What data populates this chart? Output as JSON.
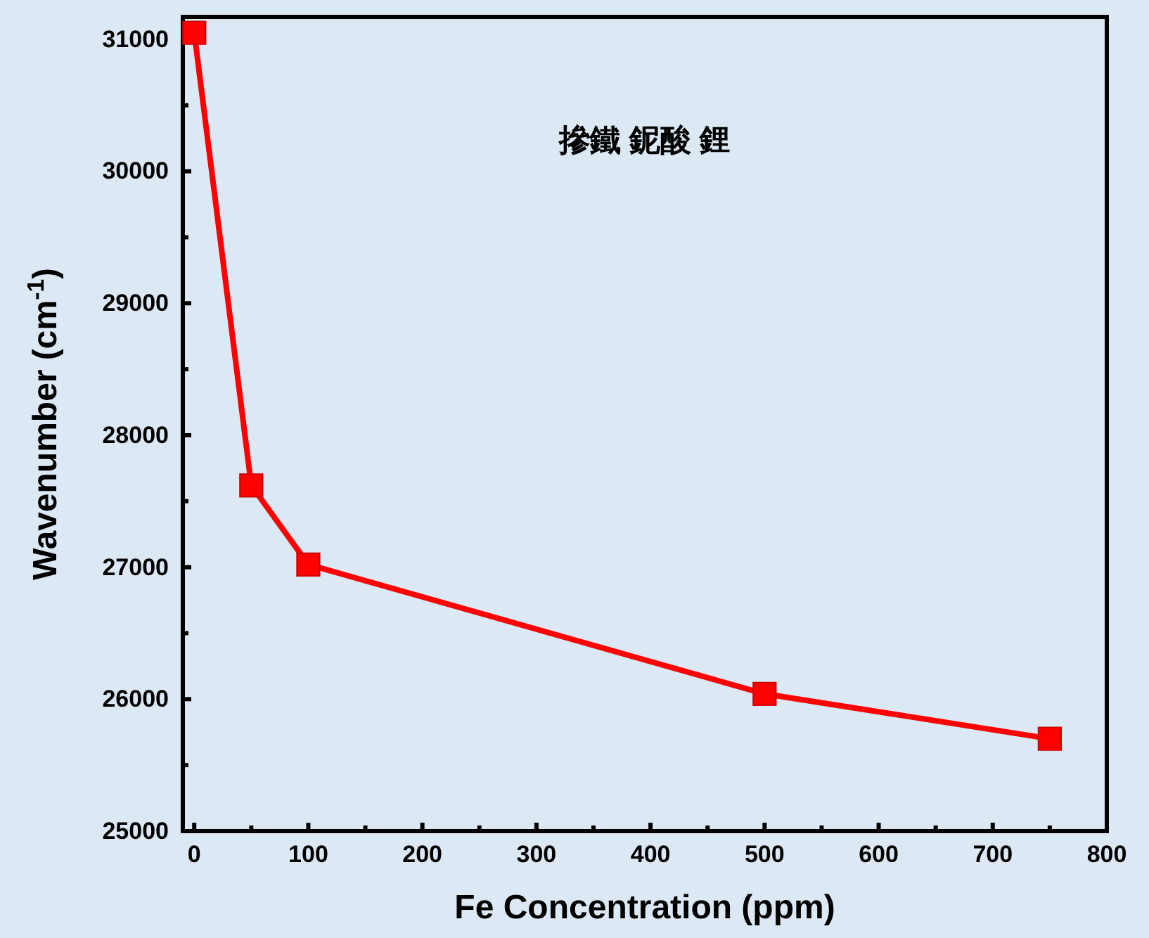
{
  "chart_data": {
    "type": "line",
    "xlabel": "Fe  Concentration (ppm)",
    "ylabel": "Wavenumber  (cm$^{-1}$)",
    "annotations": [
      "摻鐵 鈮酸 鋰"
    ],
    "x": [
      0,
      50,
      100,
      500,
      750
    ],
    "series": [
      {
        "color": "#ff0000",
        "values": [
          31050,
          27620,
          27020,
          26040,
          25700
        ]
      }
    ],
    "marker": "square",
    "line_style": "solid",
    "xlim": [
      -10,
      800
    ],
    "ylim": [
      25000,
      31170
    ],
    "xticks": [
      0,
      {
        "value": 50,
        "label": null
      },
      100,
      {
        "value": 150,
        "label": null
      },
      200,
      {
        "value": 250,
        "label": null
      },
      300,
      {
        "value": 350,
        "label": null
      },
      400,
      {
        "value": 450,
        "label": null
      },
      500,
      {
        "value": 550,
        "label": null
      },
      600,
      {
        "value": 650,
        "label": null
      },
      700,
      {
        "value": 750,
        "label": null
      },
      800
    ],
    "yticks": [
      25000,
      {
        "value": 25500,
        "label": null
      },
      26000,
      {
        "value": 26500,
        "label": null
      },
      27000,
      {
        "value": 27500,
        "label": null
      },
      28000,
      {
        "value": 28500,
        "label": null
      },
      29000,
      {
        "value": 29500,
        "label": null
      },
      30000,
      {
        "value": 30500,
        "label": null
      },
      31000
    ]
  }
}
